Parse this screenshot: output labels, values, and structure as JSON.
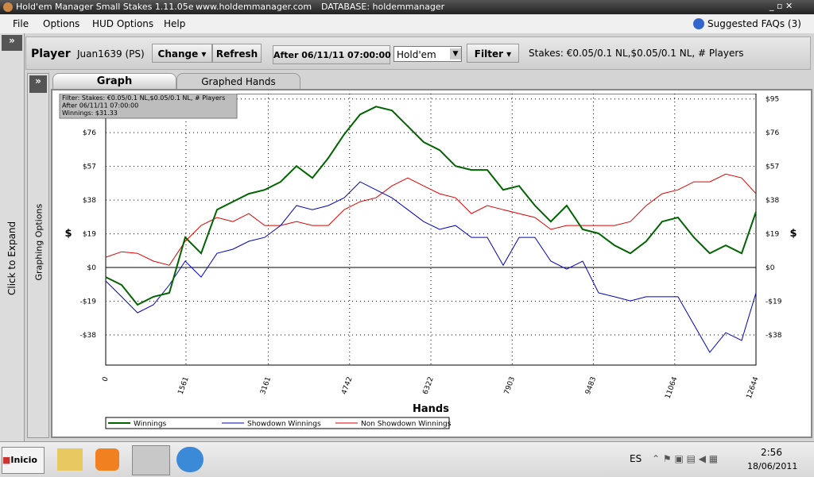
{
  "window": {
    "title": "Hold'em Manager Small Stakes 1.11.05e",
    "site": "www.holdemmanager.com",
    "database": "DATABASE: holdemmanager"
  },
  "menu": [
    "File",
    "Options",
    "HUD Options",
    "Help"
  ],
  "faqs": "Suggested FAQs (3)",
  "expand_button": "»",
  "sidebar_label": "Click to Expand",
  "toolbar": {
    "player_label": "Player",
    "player": "Juan1639 (PS)",
    "change": "Change",
    "refresh": "Refresh",
    "date": "After 06/11/11 07:00:00",
    "game": "Hold'em",
    "filter": "Filter",
    "stakes": "Stakes: €0.05/0.1 NL,$0.05/0.1 NL, # Players"
  },
  "tabs": [
    "Graph",
    "Graphed Hands"
  ],
  "options_label": "Graphing Options",
  "chart_data": {
    "type": "line",
    "xlabel": "Hands",
    "ylabel": "$",
    "info": [
      "Filter: Stakes: €0.05/0.1 NL,$0.05/0.1 NL, # Players",
      "After 06/11/11 07:00:00",
      "Winnings: $31.33"
    ],
    "x": [
      0,
      309,
      618,
      927,
      1237,
      1546,
      1855,
      2164,
      2473,
      2782,
      3091,
      3401,
      3710,
      4019,
      4328,
      4637,
      4946,
      5255,
      5564,
      5873,
      6182,
      6492,
      6801,
      7110,
      7419,
      7728,
      8037,
      8346,
      8655,
      8964,
      9274,
      9583,
      9892,
      10201,
      10510,
      10819,
      11128,
      11437,
      11746,
      12056,
      12365,
      12644
    ],
    "series": [
      {
        "name": "Winnings",
        "color": "#006400",
        "values": [
          -5.4,
          -9.8,
          -21.0,
          -16.5,
          -14.3,
          17.0,
          8.0,
          32.6,
          37.1,
          41.6,
          43.8,
          48.3,
          57.2,
          50.5,
          61.7,
          75.1,
          86.3,
          90.7,
          88.5,
          79.6,
          70.7,
          66.2,
          57.2,
          55.0,
          55.0,
          43.8,
          46.0,
          34.9,
          25.9,
          34.9,
          21.5,
          19.2,
          12.5,
          8.0,
          14.8,
          25.9,
          28.2,
          17.0,
          8.0,
          12.5,
          8.0,
          31.33
        ]
      },
      {
        "name": "Showdown Winnings",
        "color": "#0000c0",
        "values": [
          -7.6,
          -16.5,
          -25.5,
          -21.0,
          -9.8,
          3.6,
          -5.4,
          8.0,
          10.3,
          14.8,
          17.0,
          23.7,
          34.9,
          32.6,
          34.9,
          39.3,
          48.3,
          43.8,
          39.3,
          32.6,
          25.9,
          21.5,
          23.7,
          17.0,
          17.0,
          1.3,
          17.0,
          17.0,
          3.6,
          -0.9,
          3.6,
          -14.3,
          -16.5,
          -18.8,
          -16.5,
          -16.5,
          -16.5,
          -32.2,
          -47.8,
          -36.7,
          -41.1,
          -14.3
        ]
      },
      {
        "name": "Non Showdown Winnings",
        "color": "#e00000",
        "values": [
          5.8,
          8.9,
          8.0,
          3.6,
          1.3,
          14.8,
          23.7,
          28.2,
          25.9,
          30.4,
          23.7,
          23.7,
          25.9,
          23.7,
          23.7,
          32.6,
          37.1,
          39.3,
          46.0,
          50.5,
          46.0,
          41.6,
          39.3,
          30.4,
          34.9,
          32.6,
          30.4,
          28.2,
          21.5,
          23.7,
          23.7,
          23.7,
          23.7,
          25.9,
          34.9,
          41.6,
          43.8,
          48.3,
          48.3,
          52.7,
          50.5,
          41.6
        ]
      }
    ],
    "xlim": [
      0,
      12644
    ],
    "xticks": [
      0,
      1561,
      3161,
      4742,
      6322,
      7903,
      9483,
      11064,
      12644
    ],
    "ylim": [
      -55,
      98
    ],
    "yticks": [
      {
        "value": -38,
        "label": "-$38"
      },
      {
        "value": -19,
        "label": "-$19"
      },
      {
        "value": 0,
        "label": "$0"
      },
      {
        "value": 19,
        "label": "$19"
      },
      {
        "value": 38,
        "label": "$38"
      },
      {
        "value": 57,
        "label": "$57"
      },
      {
        "value": 76,
        "label": "$76"
      },
      {
        "value": 95,
        "label": "$95"
      }
    ],
    "grid": true
  },
  "taskbar": {
    "start": "Inicio",
    "language": "ES",
    "time": "2:56",
    "date": "18/06/2011"
  }
}
